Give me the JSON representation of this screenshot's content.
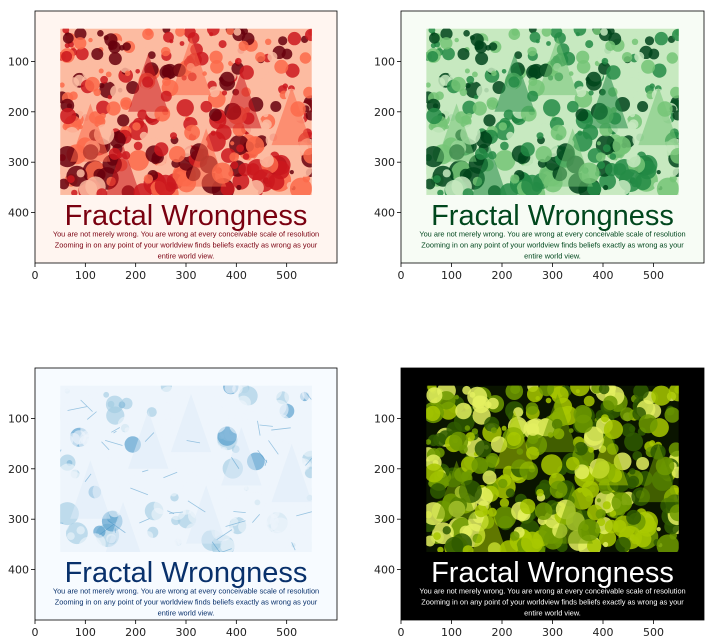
{
  "chart_data": [
    {
      "type": "image",
      "colormap": "Reds",
      "xlim": [
        0,
        600
      ],
      "ylim": [
        500,
        0
      ],
      "xticks": [
        0,
        100,
        200,
        300,
        400,
        500
      ],
      "yticks": [
        100,
        200,
        300,
        400
      ],
      "background_color": "#fff5f0",
      "photo_region": {
        "x": [
          50,
          550
        ],
        "y": [
          35,
          365
        ]
      },
      "photo_colors": [
        "#fff5f0",
        "#fcbba1",
        "#fb6a4a",
        "#cb181d",
        "#67000d"
      ],
      "headline": "Fractal Wrongness",
      "caption_lines": [
        "You are not merely wrong. You are wrong at every conceivable scale of resolution",
        "Zooming in on any point of your worldview finds beliefs exactly as wrong as your",
        "entire world view."
      ],
      "text_color": "#7a0010"
    },
    {
      "type": "image",
      "colormap": "Greens",
      "xlim": [
        0,
        600
      ],
      "ylim": [
        500,
        0
      ],
      "xticks": [
        0,
        100,
        200,
        300,
        400,
        500
      ],
      "yticks": [
        100,
        200,
        300,
        400
      ],
      "background_color": "#f7fcf5",
      "photo_region": {
        "x": [
          50,
          550
        ],
        "y": [
          35,
          365
        ]
      },
      "photo_colors": [
        "#f7fcf5",
        "#c7e9c0",
        "#74c476",
        "#238b45",
        "#00441b"
      ],
      "headline": "Fractal Wrongness",
      "caption_lines": [
        "You are not merely wrong. You are wrong at every conceivable scale of resolution",
        "Zooming in on any point of your worldview finds beliefs exactly as wrong as your",
        "entire world view."
      ],
      "text_color": "#00471d"
    },
    {
      "type": "image",
      "colormap": "Blues",
      "xlim": [
        0,
        600
      ],
      "ylim": [
        500,
        0
      ],
      "xticks": [
        0,
        100,
        200,
        300,
        400,
        500
      ],
      "yticks": [
        100,
        200,
        300,
        400
      ],
      "background_color": "#f7fbff",
      "photo_region": {
        "x": [
          50,
          550
        ],
        "y": [
          35,
          365
        ]
      },
      "photo_colors": [
        "#f7fbff",
        "#eef5fc",
        "#deebf7",
        "#9ecae1",
        "#4292c6"
      ],
      "headline": "Fractal Wrongness",
      "caption_lines": [
        "You are not merely wrong. You are wrong at every conceivable scale of resolution",
        "Zooming in on any point of your worldview finds beliefs exactly as wrong as your",
        "entire world view."
      ],
      "text_color": "#08306b"
    },
    {
      "type": "image",
      "colormap": "rgb",
      "xlim": [
        0,
        600
      ],
      "ylim": [
        500,
        0
      ],
      "xticks": [
        0,
        100,
        200,
        300,
        400,
        500
      ],
      "yticks": [
        100,
        200,
        300,
        400
      ],
      "background_color": "#000000",
      "photo_region": {
        "x": [
          50,
          550
        ],
        "y": [
          35,
          365
        ]
      },
      "photo_colors": [
        "#0a1400",
        "#2f5a00",
        "#6f9a00",
        "#a8c800",
        "#e4f060"
      ],
      "headline": "Fractal Wrongness",
      "caption_lines": [
        "You are not merely wrong. You are wrong at every conceivable scale of resolution",
        "Zooming in on any point of your worldview finds beliefs exactly as wrong as your",
        "entire world view."
      ],
      "text_color": "#ffffff"
    }
  ]
}
